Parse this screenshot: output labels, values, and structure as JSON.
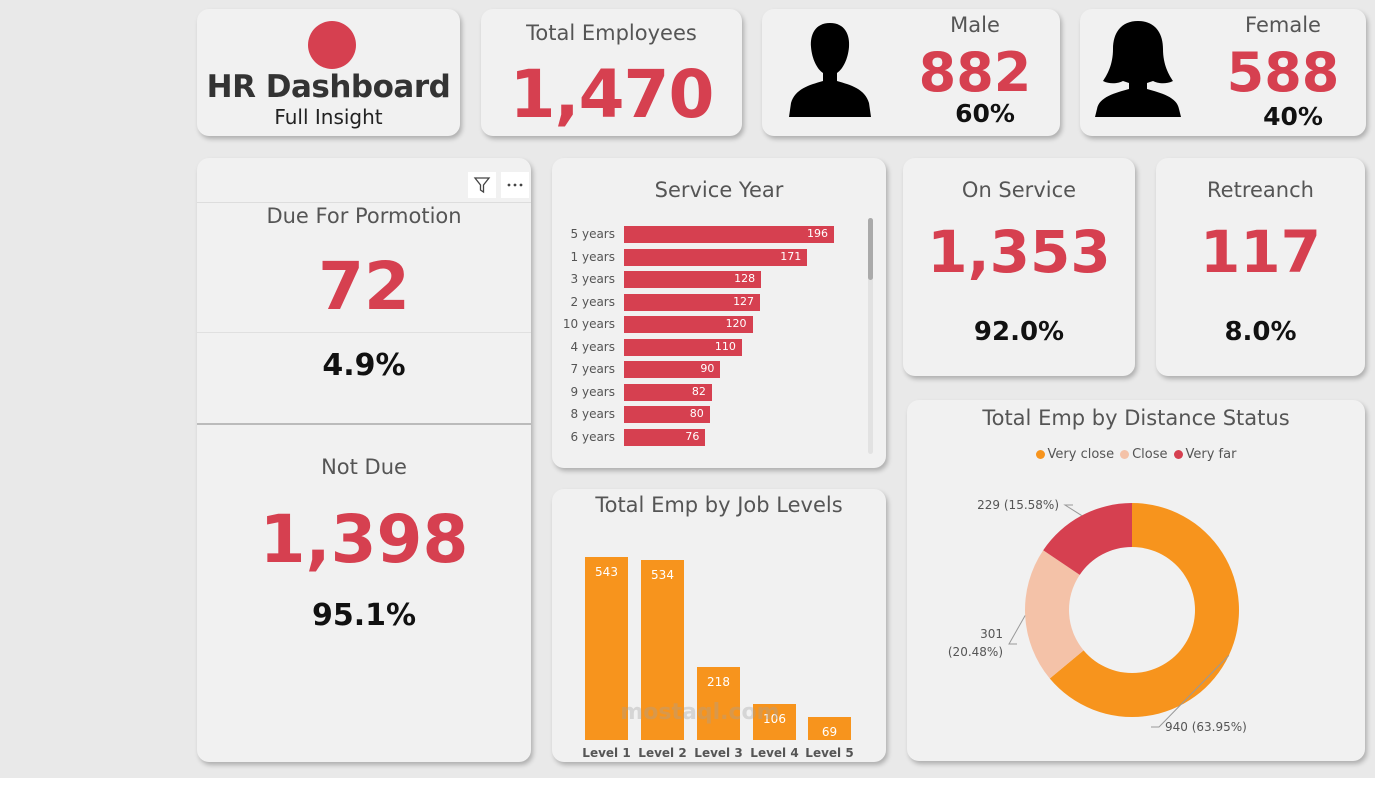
{
  "logo": {
    "title": "HR Dashboard",
    "subtitle": "Full Insight"
  },
  "total_employees": {
    "title": "Total Employees",
    "value": "1,470"
  },
  "male": {
    "title": "Male",
    "value": "882",
    "pct": "60%",
    "icon": "male-person-icon"
  },
  "female": {
    "title": "Female",
    "value": "588",
    "pct": "40%",
    "icon": "female-person-icon"
  },
  "promotion": {
    "due_title": "Due For Pormotion",
    "due_value": "72",
    "due_pct": "4.9%",
    "not_due_title": "Not Due",
    "not_due_value": "1,398",
    "not_due_pct": "95.1%",
    "filter_icon": "filter-icon",
    "more_icon": "more-options-icon"
  },
  "on_service": {
    "title": "On Service",
    "value": "1,353",
    "pct": "92.0%"
  },
  "retreanch": {
    "title": "Retreanch",
    "value": "117",
    "pct": "8.0%"
  },
  "colors": {
    "accent_red": "#d64050",
    "orange": "#f7941d",
    "peach": "#f4c2a8"
  },
  "chart_data": [
    {
      "type": "bar",
      "orientation": "horizontal",
      "title": "Service Year",
      "categories": [
        "5 years",
        "1 years",
        "3 years",
        "2 years",
        "10 years",
        "4 years",
        "7 years",
        "9 years",
        "8 years",
        "6 years"
      ],
      "values": [
        196,
        171,
        128,
        127,
        120,
        110,
        90,
        82,
        80,
        76
      ],
      "xlim": [
        0,
        196
      ]
    },
    {
      "type": "bar",
      "title": "Total Emp by Job Levels",
      "categories": [
        "Level 1",
        "Level 2",
        "Level 3",
        "Level 4",
        "Level 5"
      ],
      "values": [
        543,
        534,
        218,
        106,
        69
      ],
      "ylim": [
        0,
        543
      ]
    },
    {
      "type": "pie",
      "donut": true,
      "title": "Total Emp by Distance Status",
      "legend_position": "top",
      "series": [
        {
          "name": "Very close",
          "value": 940,
          "label": "940 (63.95%)",
          "color": "#f7941d"
        },
        {
          "name": "Close",
          "value": 301,
          "label": "301 (20.48%)",
          "color": "#f4c2a8"
        },
        {
          "name": "Very far",
          "value": 229,
          "label": "229 (15.58%)",
          "color": "#d64050"
        }
      ]
    }
  ],
  "watermark": "mostaql.com"
}
